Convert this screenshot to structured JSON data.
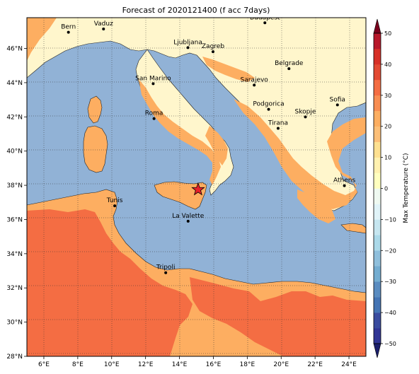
{
  "title": "Forecast of 2020121400 (f acc 7days)",
  "map": {
    "lon_range": [
      5,
      25
    ],
    "lat_range": [
      28,
      47.8
    ],
    "lon_ticks": [
      6,
      8,
      10,
      12,
      14,
      16,
      18,
      20,
      22,
      24
    ],
    "lon_tick_labels": [
      "6°E",
      "8°E",
      "10°E",
      "12°E",
      "14°E",
      "16°E",
      "18°E",
      "20°E",
      "22°E",
      "24°E"
    ],
    "lat_ticks": [
      28,
      30,
      32,
      34,
      36,
      38,
      40,
      42,
      44,
      46
    ],
    "lat_tick_labels": [
      "28°N",
      "30°N",
      "32°N",
      "34°N",
      "36°N",
      "38°N",
      "40°N",
      "42°N",
      "44°N",
      "46°N"
    ],
    "grid": "dotted",
    "sea_color": "#91b2d6",
    "cities": [
      {
        "name": "Bern",
        "lon": 7.45,
        "lat": 46.95
      },
      {
        "name": "Vaduz",
        "lon": 9.52,
        "lat": 47.14
      },
      {
        "name": "Budapest",
        "lon": 19.04,
        "lat": 47.5
      },
      {
        "name": "Ljubljana",
        "lon": 14.5,
        "lat": 46.05
      },
      {
        "name": "Zagreb",
        "lon": 15.98,
        "lat": 45.81
      },
      {
        "name": "San Marino",
        "lon": 12.45,
        "lat": 43.94
      },
      {
        "name": "Belgrade",
        "lon": 20.46,
        "lat": 44.82
      },
      {
        "name": "Sarajevo",
        "lon": 18.41,
        "lat": 43.86
      },
      {
        "name": "Sofia",
        "lon": 23.32,
        "lat": 42.7
      },
      {
        "name": "Roma",
        "lon": 12.5,
        "lat": 41.9
      },
      {
        "name": "Podgorica",
        "lon": 19.26,
        "lat": 42.44
      },
      {
        "name": "Skopje",
        "lon": 21.43,
        "lat": 42.0
      },
      {
        "name": "Tirana",
        "lon": 19.82,
        "lat": 41.33
      },
      {
        "name": "Athens",
        "lon": 23.73,
        "lat": 37.98
      },
      {
        "name": "Tunis",
        "lon": 10.18,
        "lat": 36.8
      },
      {
        "name": "La Valette",
        "lon": 14.51,
        "lat": 35.9
      },
      {
        "name": "Tripoli",
        "lon": 13.19,
        "lat": 32.89
      }
    ],
    "marker": {
      "symbol": "star",
      "lon": 15.1,
      "lat": 37.75,
      "color": "#e8202a"
    }
  },
  "colorbar": {
    "label": "Max Temperature (°C)",
    "ticks": [
      -50,
      -40,
      -30,
      -20,
      -10,
      0,
      10,
      20,
      30,
      40,
      50
    ],
    "levels": [
      -50,
      -45,
      -40,
      -35,
      -30,
      -25,
      -20,
      -15,
      -10,
      -5,
      0,
      5,
      10,
      15,
      20,
      25,
      30,
      35,
      40,
      45,
      50
    ],
    "colors": [
      "#313695",
      "#3a4c9f",
      "#4575b4",
      "#5a8cc0",
      "#74add1",
      "#8fbfdc",
      "#abd9e9",
      "#c6e6f0",
      "#e0f3f8",
      "#eff9f1",
      "#ffffbf",
      "#fff1b0",
      "#fee090",
      "#fdbf78",
      "#fdae61",
      "#f88d52",
      "#f46d43",
      "#e34a33",
      "#d73027",
      "#b8182a",
      "#a50026"
    ],
    "under_color": "#1b1f6b",
    "over_color": "#7a001c"
  }
}
